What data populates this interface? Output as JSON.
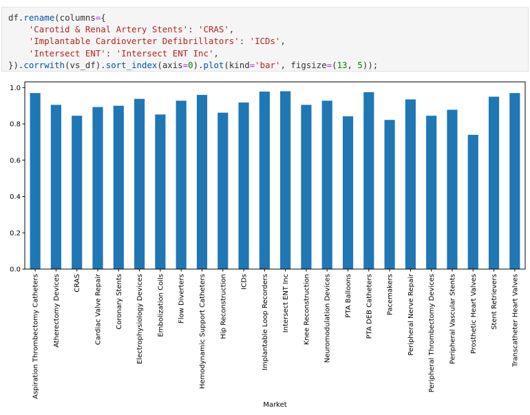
{
  "code": {
    "lines": [
      [
        {
          "t": "df.",
          "c": ""
        },
        {
          "t": "rename",
          "c": "fn"
        },
        {
          "t": "(columns",
          "c": ""
        },
        {
          "t": "=",
          "c": "op"
        },
        {
          "t": "{",
          "c": ""
        }
      ],
      [
        {
          "t": "    ",
          "c": ""
        },
        {
          "t": "'Carotid & Renal Artery Stents'",
          "c": "str"
        },
        {
          "t": ": ",
          "c": ""
        },
        {
          "t": "'CRAS'",
          "c": "str"
        },
        {
          "t": ",",
          "c": ""
        }
      ],
      [
        {
          "t": "    ",
          "c": ""
        },
        {
          "t": "'Implantable Cardioverter Defibrillators'",
          "c": "str"
        },
        {
          "t": ": ",
          "c": ""
        },
        {
          "t": "'ICDs'",
          "c": "str"
        },
        {
          "t": ",",
          "c": ""
        }
      ],
      [
        {
          "t": "    ",
          "c": ""
        },
        {
          "t": "'Intersect ENT'",
          "c": "str"
        },
        {
          "t": ": ",
          "c": ""
        },
        {
          "t": "'Intersect ENT Inc'",
          "c": "str"
        },
        {
          "t": ",",
          "c": ""
        }
      ],
      [
        {
          "t": "}).",
          "c": ""
        },
        {
          "t": "corrwith",
          "c": "fn"
        },
        {
          "t": "(vs_df).",
          "c": ""
        },
        {
          "t": "sort_index",
          "c": "fn"
        },
        {
          "t": "(axis",
          "c": ""
        },
        {
          "t": "=",
          "c": "op"
        },
        {
          "t": "0",
          "c": "num"
        },
        {
          "t": ").",
          "c": ""
        },
        {
          "t": "plot",
          "c": "fn"
        },
        {
          "t": "(kind",
          "c": ""
        },
        {
          "t": "=",
          "c": "op"
        },
        {
          "t": "'bar'",
          "c": "str"
        },
        {
          "t": ", figsize",
          "c": ""
        },
        {
          "t": "=",
          "c": "op"
        },
        {
          "t": "(",
          "c": ""
        },
        {
          "t": "13",
          "c": "num"
        },
        {
          "t": ", ",
          "c": ""
        },
        {
          "t": "5",
          "c": "num"
        },
        {
          "t": "));",
          "c": ""
        }
      ]
    ]
  },
  "colors": {
    "bar": "#1f77b4",
    "axis": "#000000"
  },
  "chart_data": {
    "type": "bar",
    "categories": [
      "Aspiration Thrombectomy Catheters",
      "Atherectomy Devices",
      "CRAS",
      "Cardiac Valve Repair",
      "Coronary Stents",
      "Electrophysiology Devices",
      "Embolization Coils",
      "Flow Diverters",
      "Hemodynamic Support Catheters",
      "Hip Reconstruction",
      "ICDs",
      "Implantable Loop Recorders",
      "Intersect ENT Inc",
      "Knee Reconstruction",
      "Neuromodulation Devices",
      "PTA Balloons",
      "PTA DEB Catheters",
      "Pacemakers",
      "Peripheral Nerve Repair",
      "Peripheral Thrombectomy Devices",
      "Peripheral Vascular Stents",
      "Prosthetic Heart Valves",
      "Stent Retrievers",
      "Transcatheter Heart Valves"
    ],
    "values": [
      0.97,
      0.905,
      0.845,
      0.893,
      0.9,
      0.938,
      0.852,
      0.928,
      0.96,
      0.862,
      0.918,
      0.978,
      0.98,
      0.905,
      0.928,
      0.842,
      0.975,
      0.822,
      0.935,
      0.845,
      0.878,
      0.74,
      0.95,
      0.97
    ],
    "xlabel": "Market",
    "ylabel": "",
    "ylim": [
      0,
      1.0
    ],
    "yticks": [
      "0.0",
      "0.2",
      "0.4",
      "0.6",
      "0.8",
      "1.0"
    ],
    "grid": false,
    "legend": false
  }
}
